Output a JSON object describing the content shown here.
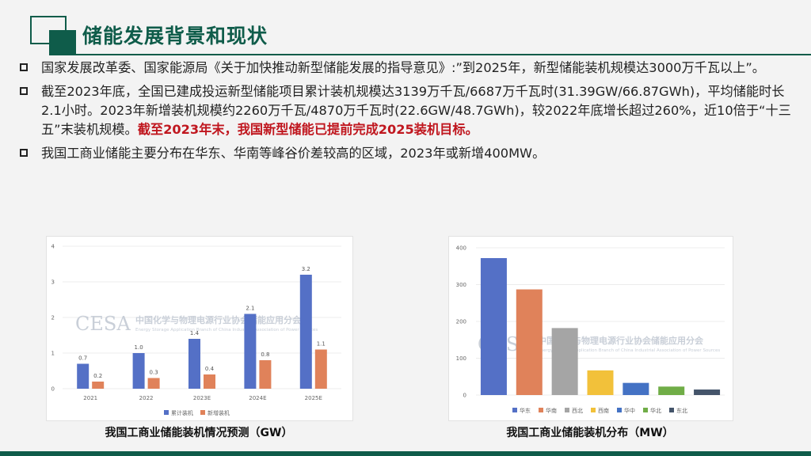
{
  "slide": {
    "title": "储能发展背景和现状",
    "bullets": [
      {
        "text": "国家发展改革委、国家能源局《关于加快推动新型储能发展的指导意见》:”到2025年，新型储能装机规模达3000万千瓦以上”。",
        "highlight": ""
      },
      {
        "text": "截至2023年底，全国已建成投运新型储能项目累计装机规模达3139万千瓦/6687万千瓦时(31.39GW/66.87GWh)，平均储能时长2.1小时。2023年新增装机规模约2260万千瓦/4870万千瓦时(22.6GW/48.7GWh)，较2022年底增长超过260%，近10倍于“十三五”末装机规模。",
        "highlight": "截至2023年末，我国新型储能已提前完成2025装机目标。"
      },
      {
        "text": "我国工商业储能主要分布在华东、华南等峰谷价差较高的区域，2023年或新增400MW。",
        "highlight": ""
      }
    ],
    "captions": [
      "我国工商业储能装机情况预测（GW）",
      "我国工商业储能装机分布（MW）"
    ],
    "watermark": {
      "logo": "CESA",
      "cn": "中国化学与物理电源行业协会储能应用分会",
      "en": "Energy Storage Application Branch of China Industrial Association of Power Sources"
    }
  },
  "colors": {
    "accent": "#0f5c4a",
    "blue": "#5470c6",
    "orange": "#e0825a",
    "highlight": "#c0171f"
  },
  "chart_data": [
    {
      "type": "bar",
      "title": "我国工商业储能装机情况预测（GW）",
      "categories": [
        "2021",
        "2022",
        "2023E",
        "2024E",
        "2025E"
      ],
      "series": [
        {
          "name": "累计装机",
          "values": [
            0.7,
            1.0,
            1.4,
            2.1,
            3.2
          ],
          "labels": [
            "0.7",
            "1.0",
            "1.4",
            "2.1",
            "3.2"
          ]
        },
        {
          "name": "新增装机",
          "values": [
            0.2,
            0.3,
            0.4,
            0.8,
            1.1
          ],
          "labels": [
            "0.2",
            "0.3",
            "0.4",
            "0.8",
            "1.1"
          ]
        }
      ],
      "yticks": [
        "0",
        "1",
        "2",
        "3",
        "4"
      ],
      "ylim": [
        0,
        4
      ],
      "legend": "bottom"
    },
    {
      "type": "bar",
      "title": "我国工商业储能装机分布（MW）",
      "categories": [
        "华东",
        "华南",
        "西北",
        "西南",
        "华中",
        "华北",
        "东北"
      ],
      "values": [
        372,
        287,
        182,
        67,
        33,
        23,
        15
      ],
      "colors": [
        "#5470c6",
        "#e0825a",
        "#a5a5a5",
        "#f2c13a",
        "#4472c4",
        "#70ad47",
        "#44546a"
      ],
      "yticks": [
        "0",
        "100",
        "200",
        "300",
        "400"
      ],
      "ylim": [
        0,
        400
      ],
      "legend": "bottom"
    }
  ]
}
